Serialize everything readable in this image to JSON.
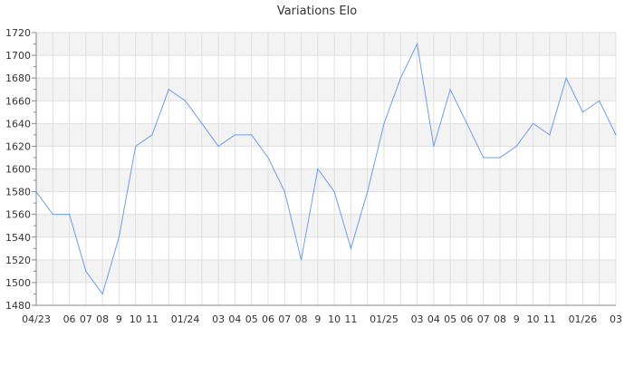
{
  "chart_data": {
    "type": "line",
    "title": "Variations Elo",
    "xlabel": "",
    "ylabel": "",
    "ylim": [
      1480,
      1720
    ],
    "y_ticks": [
      1480,
      1500,
      1520,
      1540,
      1560,
      1580,
      1600,
      1620,
      1640,
      1660,
      1680,
      1700,
      1720
    ],
    "grid": true,
    "alternating_bands": true,
    "line_color": "#6d9eeb",
    "band_color": "#f3f3f3",
    "grid_color": "#e0e0e0",
    "x_months": [
      "2023-04",
      "2023-05",
      "2023-06",
      "2023-07",
      "2023-08",
      "2023-09",
      "2023-10",
      "2023-11",
      "2023-12",
      "2024-01",
      "2024-02",
      "2024-03",
      "2024-04",
      "2024-05",
      "2024-06",
      "2024-07",
      "2024-08",
      "2024-09",
      "2024-10",
      "2024-11",
      "2024-12",
      "2025-01",
      "2025-02",
      "2025-03",
      "2025-04",
      "2025-05",
      "2025-06",
      "2025-07",
      "2025-08",
      "2025-09",
      "2025-10",
      "2025-11",
      "2025-12",
      "2026-01",
      "2026-02",
      "2026-03"
    ],
    "x_tick_labels": [
      "04/23",
      "",
      "06",
      "07",
      "08",
      "9",
      "10",
      "11",
      "",
      "01/24",
      "",
      "03",
      "04",
      "05",
      "06",
      "07",
      "08",
      "9",
      "10",
      "11",
      "",
      "01/25",
      "",
      "03",
      "04",
      "05",
      "06",
      "07",
      "08",
      "9",
      "10",
      "11",
      "",
      "01/26",
      "",
      "03"
    ],
    "values": [
      1580,
      1560,
      1560,
      1510,
      1490,
      1540,
      1620,
      1630,
      1670,
      1660,
      1640,
      1620,
      1630,
      1630,
      1610,
      1580,
      1520,
      1600,
      1580,
      1530,
      1580,
      1640,
      1680,
      1710,
      1620,
      1670,
      1640,
      1610,
      1610,
      1620,
      1640,
      1630,
      1680,
      1650,
      1660,
      1630
    ]
  }
}
